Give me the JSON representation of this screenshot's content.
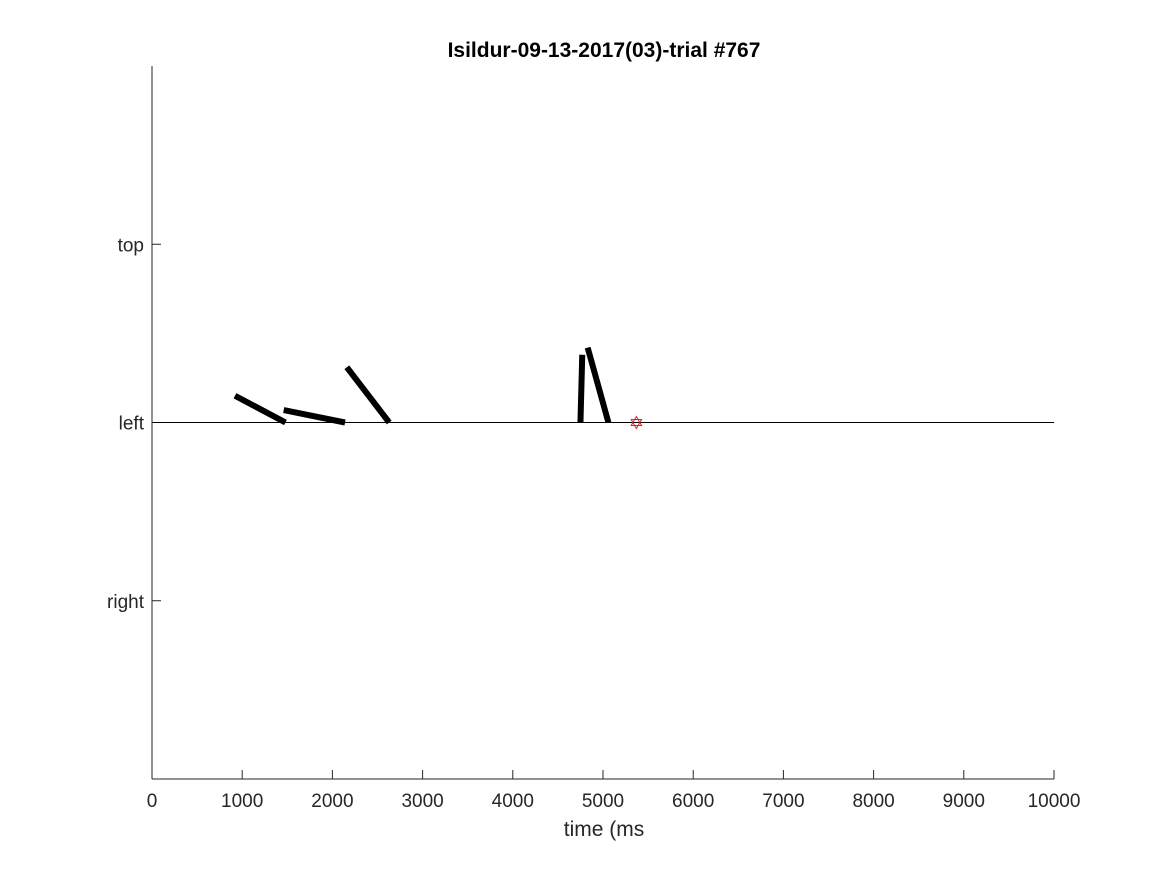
{
  "chart_data": {
    "type": "line",
    "title": "Isildur-09-13-2017(03)-trial #767",
    "xlabel": "time (ms",
    "ylabel": "",
    "xlim": [
      0,
      10000
    ],
    "x_ticks": [
      0,
      1000,
      2000,
      3000,
      4000,
      5000,
      6000,
      7000,
      8000,
      9000,
      10000
    ],
    "x_tick_labels": [
      "0",
      "1000",
      "2000",
      "3000",
      "4000",
      "5000",
      "6000",
      "7000",
      "8000",
      "9000",
      "10000"
    ],
    "y_ticks": [
      {
        "label": "top",
        "value": 2
      },
      {
        "label": "left",
        "value": 1
      },
      {
        "label": "right",
        "value": 0
      }
    ],
    "ylim": [
      -1,
      3
    ],
    "baseline": {
      "y": 1,
      "x_range": [
        0,
        10000
      ]
    },
    "segments": [
      {
        "x": [
          920,
          1480
        ],
        "y": [
          1.15,
          1.0
        ]
      },
      {
        "x": [
          1460,
          2140
        ],
        "y": [
          1.07,
          1.0
        ]
      },
      {
        "x": [
          2160,
          2630
        ],
        "y": [
          1.31,
          1.0
        ]
      },
      {
        "x": [
          4750,
          4770
        ],
        "y": [
          1.0,
          1.38
        ]
      },
      {
        "x": [
          4830,
          5060
        ],
        "y": [
          1.42,
          1.0
        ]
      }
    ],
    "marker": {
      "x": 5370,
      "y": 1,
      "shape": "hexagram",
      "color": "#d62728"
    },
    "colors": {
      "segments": "#000000",
      "axes": "#262626"
    },
    "grid": false
  }
}
